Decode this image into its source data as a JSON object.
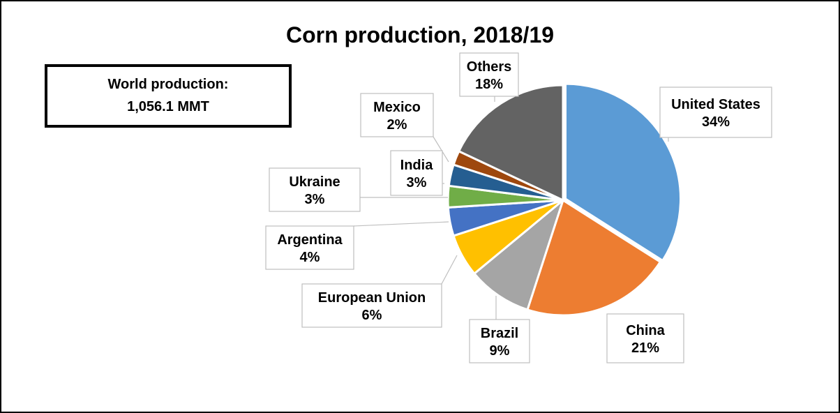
{
  "chart_data": {
    "type": "pie",
    "title": "Corn production, 2018/19",
    "callout": {
      "line1": "World production:",
      "line2": "1,056.1 MMT"
    },
    "slices": [
      {
        "name": "United States",
        "value": 34,
        "label": "34%",
        "color": "#5B9BD5"
      },
      {
        "name": "China",
        "value": 21,
        "label": "21%",
        "color": "#ED7D31"
      },
      {
        "name": "Brazil",
        "value": 9,
        "label": "9%",
        "color": "#A5A5A5"
      },
      {
        "name": "European Union",
        "value": 6,
        "label": "6%",
        "color": "#FFC000"
      },
      {
        "name": "Argentina",
        "value": 4,
        "label": "4%",
        "color": "#4472C4"
      },
      {
        "name": "Ukraine",
        "value": 3,
        "label": "3%",
        "color": "#70AD47"
      },
      {
        "name": "India",
        "value": 3,
        "label": "3%",
        "color": "#255E91"
      },
      {
        "name": "Mexico",
        "value": 2,
        "label": "2%",
        "color": "#9E480E"
      },
      {
        "name": "Others",
        "value": 18,
        "label": "18%",
        "color": "#636363"
      }
    ]
  }
}
